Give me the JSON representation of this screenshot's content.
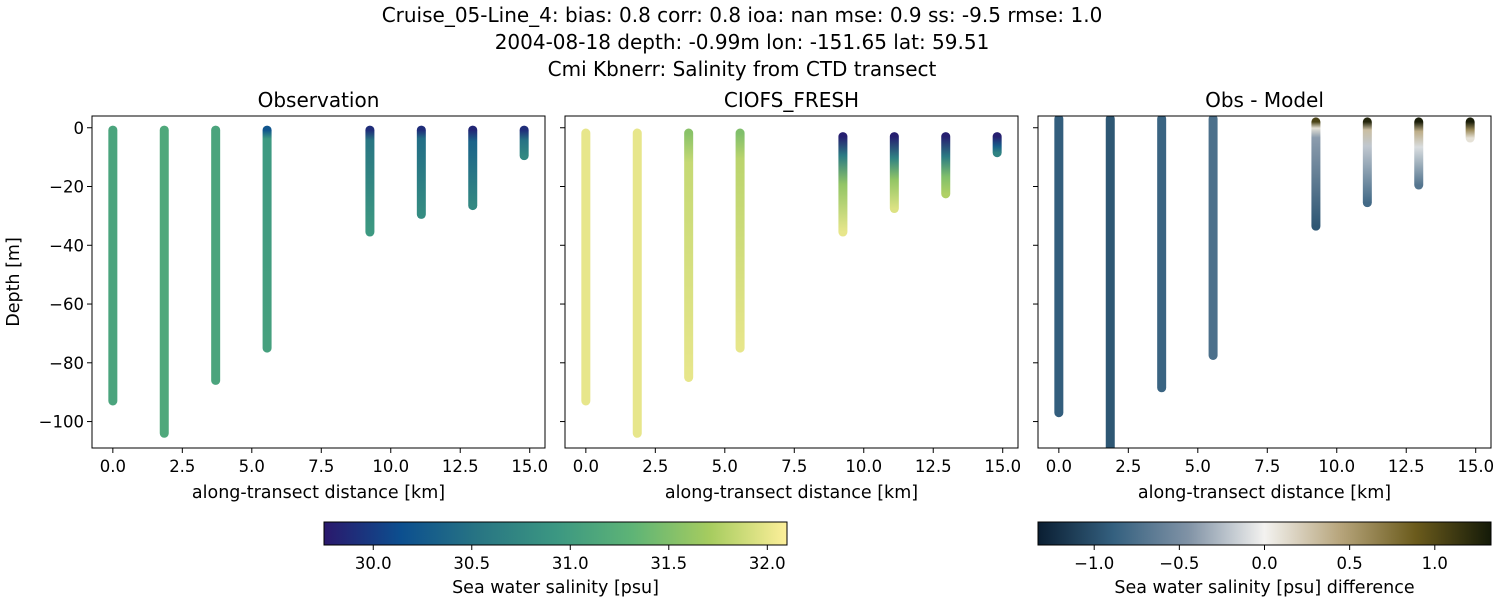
{
  "figure": {
    "title_lines": [
      "Cruise_05-Line_4: bias: 0.8  corr: 0.8  ioa: nan  mse: 0.9  ss: -9.5  rmse: 1.0",
      "2004-08-18 depth: -0.99m lon: -151.65 lat: 59.51",
      "Cmi Kbnerr: Salinity from CTD transect"
    ]
  },
  "colormaps": {
    "haline": [
      "#2a186c",
      "#0c4f8f",
      "#287583",
      "#3b9782",
      "#5eb476",
      "#a6cc5f",
      "#fdef9a"
    ],
    "diff": [
      "#0a1e32",
      "#34607f",
      "#8193a6",
      "#f3f2f0",
      "#b7a57c",
      "#6b5b1c",
      "#141a08"
    ]
  },
  "chart_data": [
    {
      "type": "scatter",
      "title": "Observation",
      "xlabel": "along-transect distance [km]",
      "ylabel": "Depth [m]",
      "xlim": [
        -0.75,
        15.55
      ],
      "ylim": [
        -109,
        4
      ],
      "xticks": [
        "0.0",
        "2.5",
        "5.0",
        "7.5",
        "10.0",
        "12.5",
        "15.0"
      ],
      "yticks": [
        "0",
        "−20",
        "−40",
        "−60",
        "−80",
        "−100"
      ],
      "colormap": "haline",
      "clim": [
        29.75,
        32.1
      ],
      "casts": [
        {
          "x": 0.0,
          "top": -0.8,
          "bottom": -93.0,
          "values": [
            [
              0,
              31.1
            ]
          ]
        },
        {
          "x": 1.85,
          "top": -0.8,
          "bottom": -104.0,
          "values": [
            [
              0,
              31.15
            ]
          ]
        },
        {
          "x": 3.7,
          "top": -0.8,
          "bottom": -86.0,
          "values": [
            [
              0,
              31.1
            ]
          ]
        },
        {
          "x": 5.55,
          "top": -0.8,
          "bottom": -75.0,
          "values": [
            [
              0,
              30.2
            ],
            [
              0.04,
              30.95
            ],
            [
              1,
              31.05
            ]
          ]
        },
        {
          "x": 9.25,
          "top": -0.8,
          "bottom": -35.5,
          "values": [
            [
              0,
              29.9
            ],
            [
              0.1,
              30.55
            ],
            [
              1,
              30.95
            ]
          ]
        },
        {
          "x": 11.1,
          "top": -0.8,
          "bottom": -29.5,
          "values": [
            [
              0,
              29.9
            ],
            [
              0.1,
              30.45
            ],
            [
              1,
              30.8
            ]
          ]
        },
        {
          "x": 12.95,
          "top": -0.8,
          "bottom": -26.5,
          "values": [
            [
              0,
              29.85
            ],
            [
              0.15,
              30.35
            ],
            [
              1,
              30.75
            ]
          ]
        },
        {
          "x": 14.8,
          "top": -0.8,
          "bottom": -9.5,
          "values": [
            [
              0,
              29.9
            ],
            [
              0.4,
              30.5
            ],
            [
              1,
              30.75
            ]
          ]
        }
      ]
    },
    {
      "type": "scatter",
      "title": "CIOFS_FRESH",
      "xlabel": "along-transect distance [km]",
      "xlim": [
        -0.75,
        15.55
      ],
      "ylim": [
        -109,
        4
      ],
      "xticks": [
        "0.0",
        "2.5",
        "5.0",
        "7.5",
        "10.0",
        "12.5",
        "15.0"
      ],
      "colormap": "haline",
      "clim": [
        29.75,
        32.1
      ],
      "casts": [
        {
          "x": 0.0,
          "top": -1.8,
          "bottom": -93.0,
          "values": [
            [
              0,
              32.0
            ]
          ]
        },
        {
          "x": 1.85,
          "top": -1.8,
          "bottom": -104.0,
          "values": [
            [
              0,
              32.0
            ]
          ]
        },
        {
          "x": 3.7,
          "top": -1.8,
          "bottom": -85.0,
          "values": [
            [
              0,
              31.55
            ],
            [
              0.12,
              31.85
            ],
            [
              1,
              32.0
            ]
          ]
        },
        {
          "x": 5.55,
          "top": -1.8,
          "bottom": -75.0,
          "values": [
            [
              0,
              31.5
            ],
            [
              0.12,
              31.8
            ],
            [
              1,
              32.0
            ]
          ]
        },
        {
          "x": 9.25,
          "top": -3.0,
          "bottom": -35.5,
          "values": [
            [
              0,
              29.8
            ],
            [
              0.2,
              30.6
            ],
            [
              0.5,
              31.6
            ],
            [
              1,
              32.0
            ]
          ]
        },
        {
          "x": 11.1,
          "top": -3.0,
          "bottom": -27.5,
          "values": [
            [
              0,
              29.8
            ],
            [
              0.3,
              30.7
            ],
            [
              0.6,
              31.6
            ],
            [
              1,
              31.95
            ]
          ]
        },
        {
          "x": 12.95,
          "top": -3.0,
          "bottom": -22.5,
          "values": [
            [
              0,
              29.8
            ],
            [
              0.35,
              30.6
            ],
            [
              0.7,
              31.5
            ],
            [
              1,
              31.75
            ]
          ]
        },
        {
          "x": 14.8,
          "top": -3.0,
          "bottom": -8.5,
          "values": [
            [
              0,
              29.8
            ],
            [
              0.6,
              30.3
            ],
            [
              1,
              30.7
            ]
          ]
        }
      ]
    },
    {
      "type": "scatter",
      "title": "Obs - Model",
      "xlabel": "along-transect distance [km]",
      "xlim": [
        -0.75,
        15.55
      ],
      "ylim": [
        -109,
        4
      ],
      "xticks": [
        "0.0",
        "2.5",
        "5.0",
        "7.5",
        "10.0",
        "12.5",
        "15.0"
      ],
      "colormap": "diff",
      "clim": [
        -1.33,
        1.33
      ],
      "casts": [
        {
          "x": 0.0,
          "top": 3.0,
          "bottom": -97.0,
          "values": [
            [
              0,
              -0.9
            ]
          ]
        },
        {
          "x": 1.85,
          "top": 3.0,
          "bottom": -109.0,
          "values": [
            [
              0,
              -0.95
            ]
          ]
        },
        {
          "x": 3.7,
          "top": 3.0,
          "bottom": -88.5,
          "values": [
            [
              0,
              -0.85
            ]
          ]
        },
        {
          "x": 5.55,
          "top": 3.0,
          "bottom": -77.5,
          "values": [
            [
              0,
              -0.75
            ]
          ]
        },
        {
          "x": 9.25,
          "top": 2.0,
          "bottom": -33.5,
          "values": [
            [
              0,
              1.05
            ],
            [
              0.06,
              0.1
            ],
            [
              0.15,
              -0.4
            ],
            [
              1,
              -0.95
            ]
          ]
        },
        {
          "x": 11.1,
          "top": 2.0,
          "bottom": -25.5,
          "values": [
            [
              0,
              1.25
            ],
            [
              0.1,
              0.3
            ],
            [
              0.3,
              -0.2
            ],
            [
              1,
              -0.8
            ]
          ]
        },
        {
          "x": 12.95,
          "top": 2.0,
          "bottom": -19.5,
          "values": [
            [
              0,
              1.3
            ],
            [
              0.15,
              0.4
            ],
            [
              0.4,
              -0.1
            ],
            [
              1,
              -0.7
            ]
          ]
        },
        {
          "x": 14.8,
          "top": 2.0,
          "bottom": -3.5,
          "values": [
            [
              0,
              1.3
            ],
            [
              0.5,
              0.6
            ],
            [
              1,
              0.1
            ]
          ]
        }
      ]
    }
  ],
  "colorbars": [
    {
      "label": "Sea water salinity [psu]",
      "colormap": "haline",
      "clim": [
        29.75,
        32.1
      ],
      "ticks": [
        30.0,
        30.5,
        31.0,
        31.5,
        32.0
      ],
      "tick_labels": [
        "30.0",
        "30.5",
        "31.0",
        "31.5",
        "32.0"
      ]
    },
    {
      "label": "Sea water salinity [psu] difference",
      "colormap": "diff",
      "clim": [
        -1.33,
        1.33
      ],
      "ticks": [
        -1.0,
        -0.5,
        0.0,
        0.5,
        1.0
      ],
      "tick_labels": [
        "−1.0",
        "−0.5",
        "0.0",
        "0.5",
        "1.0"
      ]
    }
  ]
}
